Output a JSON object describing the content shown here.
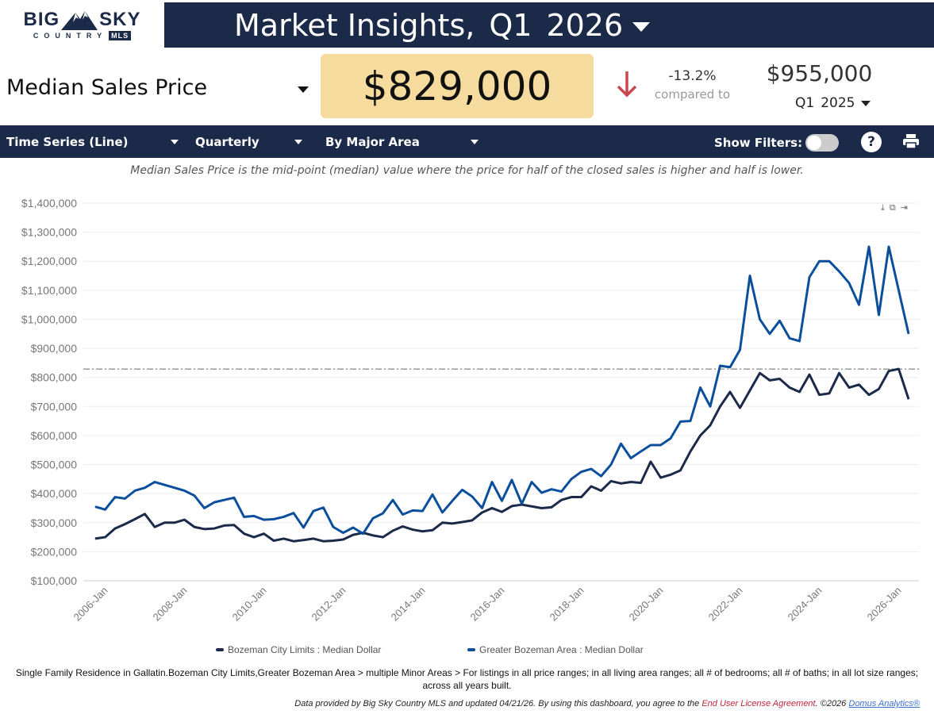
{
  "logo": {
    "text_top_left": "BIG",
    "text_top_right": "SKY",
    "text_bottom": "COUNTRY",
    "badge": "MLS"
  },
  "header": {
    "title": "Market Insights,",
    "quarter": "Q1",
    "year": "2026"
  },
  "metric": {
    "selected": "Median Sales Price"
  },
  "kpi": {
    "value": "$829,000",
    "change": "-13.2%",
    "compared_label": "compared to",
    "direction": "down",
    "down_color": "#c9484e",
    "prev_value": "$955,000",
    "prev_quarter": "Q1",
    "prev_year": "2025"
  },
  "toolbar": {
    "chart_type": "Time Series (Line)",
    "interval": "Quarterly",
    "grouping": "By Major Area",
    "show_filters_label": "Show Filters:",
    "show_filters_on": false
  },
  "description": "Median Sales Price is the mid-point (median) value where the price for half of the closed sales is higher and half is lower.",
  "chart_data": {
    "type": "line",
    "x_start": "2005-Q4",
    "x_step": "quarter",
    "x_tick_labels": [
      "2006-Jan",
      "2008-Jan",
      "2010-Jan",
      "2012-Jan",
      "2014-Jan",
      "2016-Jan",
      "2018-Jan",
      "2020-Jan",
      "2022-Jan",
      "2024-Jan",
      "2026-Jan"
    ],
    "y_tick_labels": [
      "$100,000",
      "$200,000",
      "$300,000",
      "$400,000",
      "$500,000",
      "$600,000",
      "$700,000",
      "$800,000",
      "$900,000",
      "$1,000,000",
      "$1,100,000",
      "$1,200,000",
      "$1,300,000",
      "$1,400,000"
    ],
    "ylim": [
      100000,
      1400000
    ],
    "grid": true,
    "legend": "bottom",
    "reference_line": 829000,
    "series": [
      {
        "name": "Bozeman City Limits : Median Dollar",
        "color": "#1c2a4a",
        "values": [
          245000,
          250000,
          280000,
          295000,
          312000,
          330000,
          285000,
          300000,
          300000,
          310000,
          285000,
          278000,
          280000,
          290000,
          292000,
          262000,
          250000,
          262000,
          238000,
          245000,
          236000,
          240000,
          245000,
          236000,
          238000,
          242000,
          258000,
          265000,
          256000,
          250000,
          272000,
          287000,
          276000,
          270000,
          274000,
          300000,
          297000,
          302000,
          308000,
          335000,
          350000,
          337000,
          357000,
          362000,
          356000,
          350000,
          353000,
          378000,
          388000,
          388000,
          425000,
          410000,
          443000,
          435000,
          440000,
          437000,
          510000,
          455000,
          465000,
          480000,
          545000,
          600000,
          635000,
          700000,
          750000,
          695000,
          755000,
          815000,
          790000,
          795000,
          765000,
          750000,
          810000,
          740000,
          745000,
          815000,
          765000,
          775000,
          740000,
          760000,
          822000,
          829000,
          725000
        ]
      },
      {
        "name": "Greater Bozeman Area : Median Dollar",
        "color": "#0b4f9c",
        "values": [
          355000,
          345000,
          388000,
          383000,
          410000,
          420000,
          440000,
          430000,
          420000,
          410000,
          393000,
          350000,
          370000,
          378000,
          386000,
          320000,
          323000,
          310000,
          312000,
          320000,
          333000,
          283000,
          340000,
          352000,
          285000,
          265000,
          283000,
          262000,
          315000,
          332000,
          378000,
          328000,
          342000,
          340000,
          397000,
          335000,
          375000,
          413000,
          390000,
          350000,
          440000,
          375000,
          447000,
          365000,
          440000,
          403000,
          415000,
          407000,
          450000,
          475000,
          485000,
          460000,
          500000,
          572000,
          522000,
          545000,
          567000,
          567000,
          590000,
          648000,
          650000,
          765000,
          700000,
          840000,
          835000,
          895000,
          1150000,
          1000000,
          950000,
          995000,
          935000,
          925000,
          1145000,
          1200000,
          1200000,
          1165000,
          1125000,
          1050000,
          1250000,
          1015000,
          1250000,
          1100000,
          950000
        ]
      }
    ]
  },
  "footnote": "Single Family Residence in Gallatin.Bozeman City Limits,Greater Bozeman Area > multiple Minor Areas > For listings in all price ranges; in all living area ranges; all # of bedrooms; all # of baths; in all lot size ranges; across all years built.",
  "credit": {
    "text": "Data provided by Big Sky Country MLS and updated 04/21/26.  By using this dashboard, you agree to the",
    "eula": "End User License Agreement",
    "copyright": ".  ©2026",
    "domus": "Domus Analytics®"
  }
}
